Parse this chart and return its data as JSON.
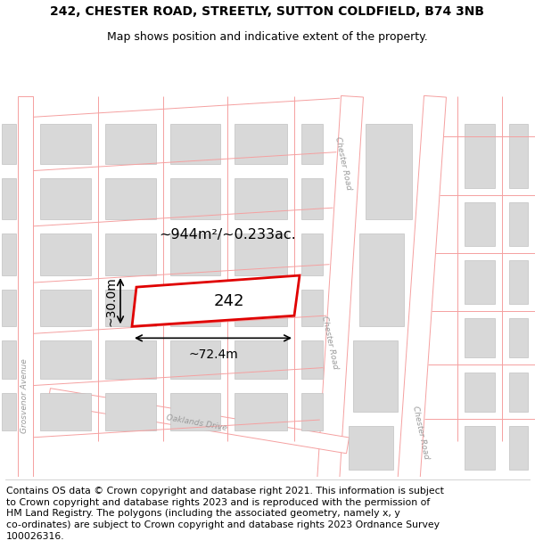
{
  "title_line1": "242, CHESTER ROAD, STREETLY, SUTTON COLDFIELD, B74 3NB",
  "title_line2": "Map shows position and indicative extent of the property.",
  "footer_text_lines": [
    "Contains OS data © Crown copyright and database right 2021. This information is subject",
    "to Crown copyright and database rights 2023 and is reproduced with the permission of",
    "HM Land Registry. The polygons (including the associated geometry, namely x, y",
    "co-ordinates) are subject to Crown copyright and database rights 2023 Ordnance Survey",
    "100026316."
  ],
  "map_bg": "#f7f4f4",
  "road_line_color": "#f5a0a0",
  "road_fill_color": "#ffffff",
  "building_fill": "#d8d8d8",
  "building_edge": "#c0c0c0",
  "highlight_fill": "#ffffff",
  "highlight_edge": "#e00000",
  "highlight_lw": 2.0,
  "area_text": "~944m²/~0.233ac.",
  "width_text": "~72.4m",
  "height_text": "~30.0m",
  "property_label": "242",
  "title_fontsize": 10,
  "subtitle_fontsize": 9,
  "footer_fontsize": 7.8,
  "road_label_color": "#999999",
  "road_label_size": 6.5
}
